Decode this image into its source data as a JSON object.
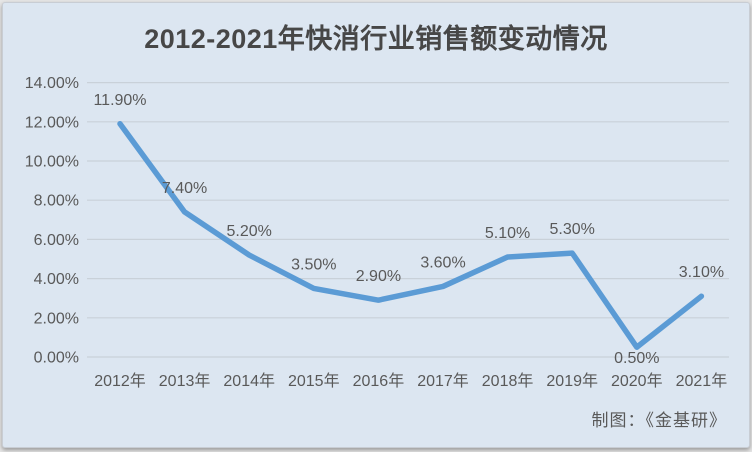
{
  "card": {
    "title": "2012-2021年快消行业销售额变动情况",
    "credit": "制图：《金基研》"
  },
  "chart_data": {
    "type": "line",
    "title": "2012-2021年快消行业销售额变动情况",
    "categories": [
      "2012年",
      "2013年",
      "2014年",
      "2015年",
      "2016年",
      "2017年",
      "2018年",
      "2019年",
      "2020年",
      "2021年"
    ],
    "series": [
      {
        "name": "快消行业销售额变动",
        "values": [
          11.9,
          7.4,
          5.2,
          3.5,
          2.9,
          3.6,
          5.1,
          5.3,
          0.5,
          3.1
        ]
      }
    ],
    "point_labels": [
      "11.90%",
      "7.40%",
      "5.20%",
      "3.50%",
      "2.90%",
      "3.60%",
      "5.10%",
      "5.30%",
      "0.50%",
      "3.10%"
    ],
    "label_below_indices": [
      8
    ],
    "xlabel": "",
    "ylabel": "",
    "ylim": [
      0,
      14
    ],
    "y_tick_step": 2,
    "y_tick_labels": [
      "0.00%",
      "2.00%",
      "4.00%",
      "6.00%",
      "8.00%",
      "10.00%",
      "12.00%",
      "14.00%"
    ],
    "grid": true,
    "legend_position": "none",
    "annotations": [
      "制图：《金基研》"
    ],
    "colors": {
      "line": "#5b9bd5",
      "background": "#dce6f1",
      "grid": "#c9d1d9",
      "text": "#595959",
      "title": "#474747"
    }
  }
}
